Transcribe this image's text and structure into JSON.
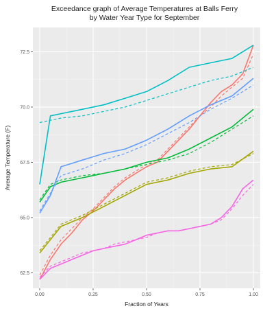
{
  "chart_data": {
    "type": "line",
    "title": [
      "Exceedance graph of Average Temperatures at Balls Ferry",
      "by Water Year Type for September"
    ],
    "xlabel": "Fraction of Years",
    "ylabel": "Average Temperature (F)",
    "xlim": [
      0,
      1
    ],
    "ylim": [
      61.8,
      73.6
    ],
    "x_ticks": [
      0.0,
      0.25,
      0.5,
      0.75,
      1.0
    ],
    "x_tick_labels": [
      "0.00",
      "0.25",
      "0.50",
      "0.75",
      "1.00"
    ],
    "y_ticks": [
      62.5,
      65.0,
      67.5,
      70.0,
      72.5
    ],
    "y_tick_labels": [
      "62.5",
      "65.0",
      "67.5",
      "70.0",
      "72.5"
    ],
    "grid": true,
    "legend": "none",
    "series": [
      {
        "color": "#F8766D",
        "dash": "solid",
        "points": [
          [
            0,
            62.2
          ],
          [
            0.05,
            63.1
          ],
          [
            0.1,
            63.8
          ],
          [
            0.15,
            64.3
          ],
          [
            0.2,
            64.9
          ],
          [
            0.25,
            65.3
          ],
          [
            0.3,
            65.8
          ],
          [
            0.35,
            66.3
          ],
          [
            0.4,
            66.7
          ],
          [
            0.45,
            67.0
          ],
          [
            0.5,
            67.3
          ],
          [
            0.55,
            67.5
          ],
          [
            0.6,
            68.0
          ],
          [
            0.65,
            68.5
          ],
          [
            0.7,
            69.0
          ],
          [
            0.75,
            69.6
          ],
          [
            0.8,
            70.2
          ],
          [
            0.85,
            70.7
          ],
          [
            0.9,
            71.0
          ],
          [
            0.95,
            71.5
          ],
          [
            1.0,
            72.8
          ]
        ]
      },
      {
        "color": "#F8766D",
        "dash": "dashed",
        "points": [
          [
            0,
            62.4
          ],
          [
            0.05,
            63.3
          ],
          [
            0.1,
            64.0
          ],
          [
            0.15,
            64.5
          ],
          [
            0.2,
            65.0
          ],
          [
            0.25,
            65.4
          ],
          [
            0.3,
            65.9
          ],
          [
            0.35,
            66.4
          ],
          [
            0.4,
            66.8
          ],
          [
            0.45,
            67.1
          ],
          [
            0.5,
            67.4
          ],
          [
            0.55,
            67.6
          ],
          [
            0.6,
            68.1
          ],
          [
            0.65,
            68.6
          ],
          [
            0.7,
            69.1
          ],
          [
            0.75,
            69.6
          ],
          [
            0.8,
            70.0
          ],
          [
            0.85,
            70.5
          ],
          [
            0.9,
            70.9
          ],
          [
            0.95,
            71.3
          ],
          [
            1.0,
            72.4
          ]
        ]
      },
      {
        "color": "#A3A500",
        "dash": "solid",
        "points": [
          [
            0,
            63.4
          ],
          [
            0.1,
            64.6
          ],
          [
            0.2,
            65.0
          ],
          [
            0.3,
            65.5
          ],
          [
            0.4,
            66.0
          ],
          [
            0.5,
            66.5
          ],
          [
            0.6,
            66.7
          ],
          [
            0.7,
            67.0
          ],
          [
            0.8,
            67.2
          ],
          [
            0.9,
            67.3
          ],
          [
            1.0,
            68.0
          ]
        ]
      },
      {
        "color": "#A3A500",
        "dash": "dashed",
        "points": [
          [
            0,
            63.5
          ],
          [
            0.1,
            64.7
          ],
          [
            0.2,
            65.1
          ],
          [
            0.3,
            65.6
          ],
          [
            0.4,
            66.1
          ],
          [
            0.5,
            66.6
          ],
          [
            0.6,
            66.8
          ],
          [
            0.7,
            67.1
          ],
          [
            0.8,
            67.3
          ],
          [
            0.9,
            67.4
          ],
          [
            1.0,
            67.9
          ]
        ]
      },
      {
        "color": "#00BA38",
        "dash": "solid",
        "points": [
          [
            0,
            65.7
          ],
          [
            0.05,
            66.4
          ],
          [
            0.1,
            66.6
          ],
          [
            0.2,
            66.8
          ],
          [
            0.3,
            67.0
          ],
          [
            0.4,
            67.2
          ],
          [
            0.5,
            67.5
          ],
          [
            0.6,
            67.7
          ],
          [
            0.7,
            68.1
          ],
          [
            0.8,
            68.6
          ],
          [
            0.9,
            69.1
          ],
          [
            1.0,
            69.9
          ]
        ]
      },
      {
        "color": "#00BA38",
        "dash": "dashed",
        "points": [
          [
            0,
            65.8
          ],
          [
            0.05,
            66.5
          ],
          [
            0.1,
            66.7
          ],
          [
            0.2,
            66.9
          ],
          [
            0.3,
            67.0
          ],
          [
            0.4,
            67.2
          ],
          [
            0.5,
            67.4
          ],
          [
            0.6,
            67.6
          ],
          [
            0.7,
            67.9
          ],
          [
            0.8,
            68.4
          ],
          [
            0.9,
            69.0
          ],
          [
            1.0,
            69.6
          ]
        ]
      },
      {
        "color": "#00BFC4",
        "dash": "solid",
        "points": [
          [
            0,
            66.5
          ],
          [
            0.05,
            69.6
          ],
          [
            0.1,
            69.7
          ],
          [
            0.2,
            69.9
          ],
          [
            0.3,
            70.1
          ],
          [
            0.4,
            70.4
          ],
          [
            0.5,
            70.7
          ],
          [
            0.6,
            71.2
          ],
          [
            0.7,
            71.8
          ],
          [
            0.8,
            72.0
          ],
          [
            0.9,
            72.2
          ],
          [
            1.0,
            72.8
          ]
        ]
      },
      {
        "color": "#00BFC4",
        "dash": "dashed",
        "points": [
          [
            0,
            69.3
          ],
          [
            0.1,
            69.5
          ],
          [
            0.2,
            69.6
          ],
          [
            0.3,
            69.8
          ],
          [
            0.4,
            70.0
          ],
          [
            0.5,
            70.3
          ],
          [
            0.6,
            70.6
          ],
          [
            0.7,
            70.9
          ],
          [
            0.8,
            71.2
          ],
          [
            0.9,
            71.4
          ],
          [
            1.0,
            71.8
          ]
        ]
      },
      {
        "color": "#619CFF",
        "dash": "solid",
        "points": [
          [
            0,
            65.2
          ],
          [
            0.05,
            66.0
          ],
          [
            0.1,
            67.3
          ],
          [
            0.2,
            67.6
          ],
          [
            0.3,
            67.9
          ],
          [
            0.4,
            68.1
          ],
          [
            0.5,
            68.5
          ],
          [
            0.6,
            69.0
          ],
          [
            0.7,
            69.6
          ],
          [
            0.8,
            70.1
          ],
          [
            0.9,
            70.5
          ],
          [
            1.0,
            71.3
          ]
        ]
      },
      {
        "color": "#619CFF",
        "dash": "dashed",
        "points": [
          [
            0,
            65.3
          ],
          [
            0.05,
            66.1
          ],
          [
            0.1,
            66.9
          ],
          [
            0.2,
            67.2
          ],
          [
            0.3,
            67.6
          ],
          [
            0.4,
            67.9
          ],
          [
            0.5,
            68.3
          ],
          [
            0.6,
            68.8
          ],
          [
            0.7,
            69.3
          ],
          [
            0.8,
            69.9
          ],
          [
            0.9,
            70.4
          ],
          [
            1.0,
            71.0
          ]
        ]
      },
      {
        "color": "#F564E3",
        "dash": "solid",
        "points": [
          [
            0,
            62.2
          ],
          [
            0.05,
            62.7
          ],
          [
            0.1,
            62.9
          ],
          [
            0.15,
            63.1
          ],
          [
            0.2,
            63.3
          ],
          [
            0.25,
            63.5
          ],
          [
            0.3,
            63.6
          ],
          [
            0.35,
            63.7
          ],
          [
            0.4,
            63.8
          ],
          [
            0.45,
            64.0
          ],
          [
            0.5,
            64.2
          ],
          [
            0.55,
            64.3
          ],
          [
            0.6,
            64.4
          ],
          [
            0.65,
            64.4
          ],
          [
            0.7,
            64.5
          ],
          [
            0.75,
            64.6
          ],
          [
            0.8,
            64.7
          ],
          [
            0.85,
            65.0
          ],
          [
            0.9,
            65.5
          ],
          [
            0.95,
            66.3
          ],
          [
            1.0,
            66.7
          ]
        ]
      },
      {
        "color": "#F564E3",
        "dash": "dashed",
        "points": [
          [
            0,
            62.3
          ],
          [
            0.05,
            62.8
          ],
          [
            0.1,
            63.0
          ],
          [
            0.15,
            63.2
          ],
          [
            0.2,
            63.4
          ],
          [
            0.25,
            63.5
          ],
          [
            0.3,
            63.6
          ],
          [
            0.35,
            63.8
          ],
          [
            0.4,
            63.9
          ],
          [
            0.45,
            64.0
          ],
          [
            0.5,
            64.1
          ],
          [
            0.55,
            64.3
          ],
          [
            0.6,
            64.4
          ],
          [
            0.65,
            64.4
          ],
          [
            0.7,
            64.5
          ],
          [
            0.75,
            64.6
          ],
          [
            0.8,
            64.7
          ],
          [
            0.85,
            64.9
          ],
          [
            0.9,
            65.4
          ],
          [
            0.95,
            66.0
          ],
          [
            1.0,
            66.5
          ]
        ]
      }
    ]
  }
}
